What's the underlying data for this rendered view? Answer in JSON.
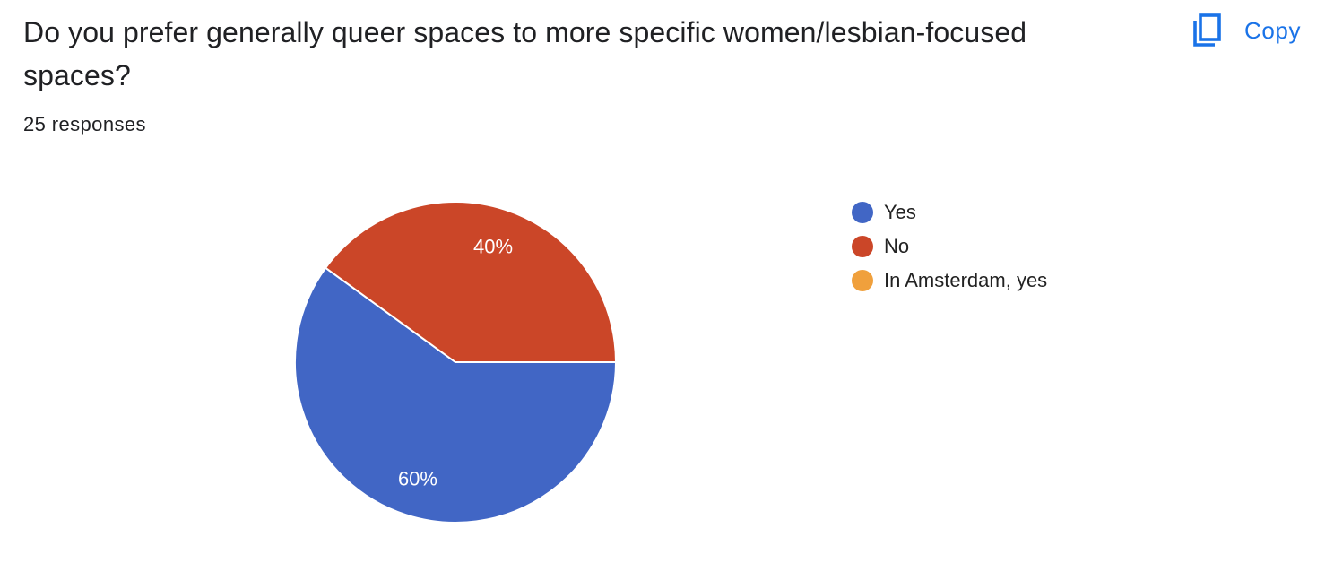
{
  "question": {
    "title": "Do you prefer generally queer spaces to more specific women/lesbian-focused spaces?",
    "responses": "25 responses"
  },
  "toolbar": {
    "copy_label": "Copy",
    "copy_icon": "copy-icon"
  },
  "chart_data": {
    "type": "pie",
    "categories": [
      "Yes",
      "No",
      "In Amsterdam, yes"
    ],
    "values": [
      60,
      40,
      0
    ],
    "labels": [
      "60%",
      "40%",
      ""
    ],
    "colors": [
      "#4166c5",
      "#cb4628",
      "#f0a03c"
    ],
    "legend_position": "right"
  },
  "legend": {
    "items": [
      {
        "label": "Yes",
        "color": "#4166c5"
      },
      {
        "label": "No",
        "color": "#cb4628"
      },
      {
        "label": "In Amsterdam, yes",
        "color": "#f0a03c"
      }
    ]
  }
}
